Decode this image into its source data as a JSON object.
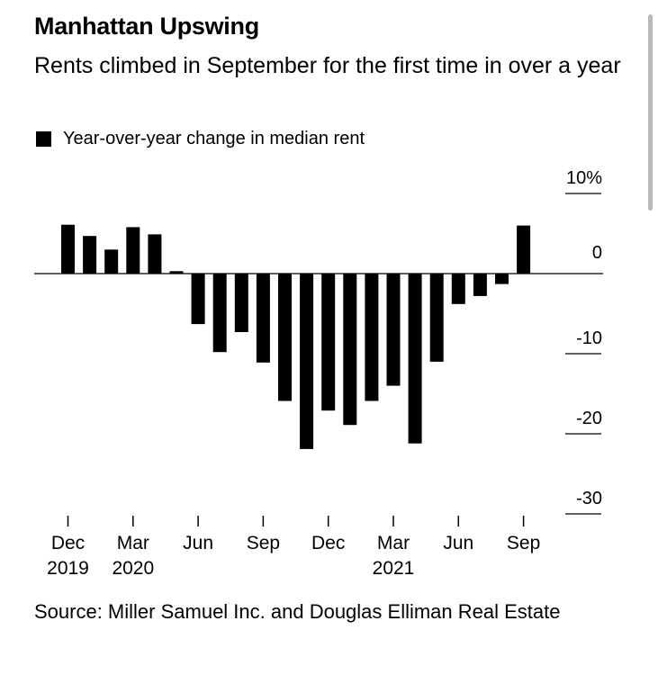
{
  "title": "Manhattan Upswing",
  "subtitle": "Rents climbed in September for the first time in over a year",
  "legend": {
    "label": "Year-over-year change in median rent"
  },
  "source": "Source: Miller Samuel Inc. and Douglas Elliman Real Estate",
  "colors": {
    "bar": "#000000",
    "axis": "#000000",
    "background": "#ffffff"
  },
  "chart_data": {
    "type": "bar",
    "title": "Manhattan Upswing",
    "subtitle": "Rents climbed in September for the first time in over a year",
    "ylim": [
      -30,
      10
    ],
    "yticks": [
      {
        "value": 10,
        "label": "10%"
      },
      {
        "value": 0,
        "label": "0"
      },
      {
        "value": -10,
        "label": "-10"
      },
      {
        "value": -20,
        "label": "-20"
      },
      {
        "value": -30,
        "label": "-30"
      }
    ],
    "categories": [
      "Dec 2019",
      "Jan 2020",
      "Feb 2020",
      "Mar 2020",
      "Apr 2020",
      "May 2020",
      "Jun 2020",
      "Jul 2020",
      "Aug 2020",
      "Sep 2020",
      "Oct 2020",
      "Nov 2020",
      "Dec 2020",
      "Jan 2021",
      "Feb 2021",
      "Mar 2021",
      "Apr 2021",
      "May 2021",
      "Jun 2021",
      "Jul 2021",
      "Aug 2021",
      "Sep 2021"
    ],
    "values": [
      6.1,
      4.7,
      3.0,
      5.8,
      4.9,
      0.3,
      -6.3,
      -9.8,
      -7.3,
      -11.1,
      -15.9,
      -21.9,
      -17.1,
      -18.9,
      -15.9,
      -14.0,
      -21.2,
      -11.0,
      -3.8,
      -2.8,
      -1.3,
      6.0
    ],
    "xticks": [
      {
        "index": 0,
        "line1": "Dec",
        "line2": "2019"
      },
      {
        "index": 3,
        "line1": "Mar",
        "line2": "2020"
      },
      {
        "index": 6,
        "line1": "Jun",
        "line2": ""
      },
      {
        "index": 9,
        "line1": "Sep",
        "line2": ""
      },
      {
        "index": 12,
        "line1": "Dec",
        "line2": ""
      },
      {
        "index": 15,
        "line1": "Mar",
        "line2": "2021"
      },
      {
        "index": 18,
        "line1": "Jun",
        "line2": ""
      },
      {
        "index": 21,
        "line1": "Sep",
        "line2": ""
      }
    ],
    "legend_position": "top-left",
    "grid": false
  }
}
